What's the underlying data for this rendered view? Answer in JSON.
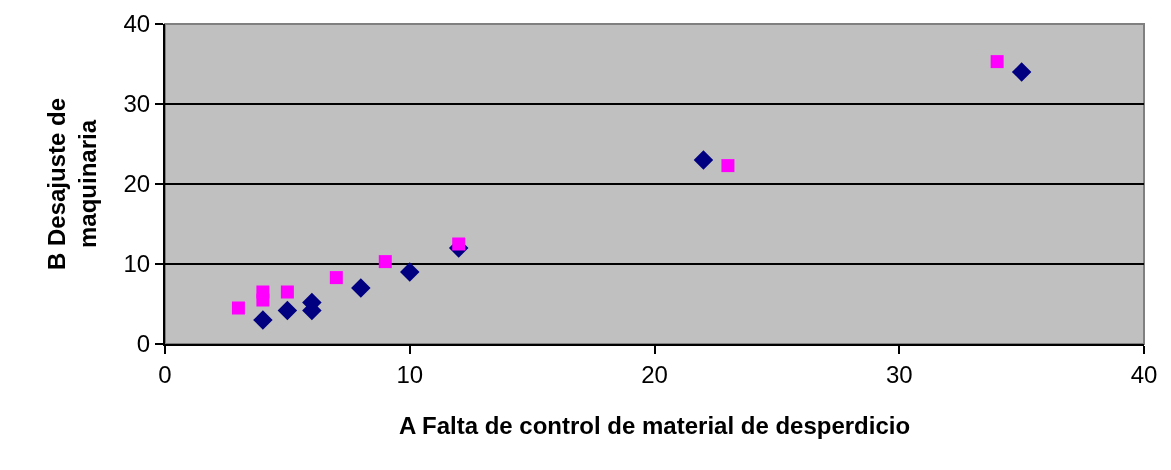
{
  "chart_data": {
    "type": "scatter",
    "xlabel": "A Falta de control de material de desperdicio",
    "ylabel": "B Desajuste de\nmaquinaria",
    "xlim": [
      0,
      40
    ],
    "xticks": [
      0,
      10,
      20,
      30,
      40
    ],
    "ylim": [
      0,
      40
    ],
    "yticks": [
      0,
      10,
      20,
      30,
      40
    ],
    "grid": "y",
    "series": [
      {
        "color": "#000080",
        "marker": "diamond",
        "x": [
          4,
          5,
          6,
          6,
          8,
          10,
          12,
          22,
          35
        ],
        "values": [
          3,
          4.2,
          4.2,
          5.2,
          7,
          9,
          12,
          23,
          34
        ]
      },
      {
        "color": "#ff00ff",
        "marker": "square",
        "x": [
          3,
          4,
          4,
          5,
          7,
          9,
          12,
          23,
          34
        ],
        "values": [
          4.5,
          5.5,
          6.5,
          6.5,
          8.3,
          10.3,
          12.5,
          22.3,
          35.3
        ]
      }
    ]
  }
}
